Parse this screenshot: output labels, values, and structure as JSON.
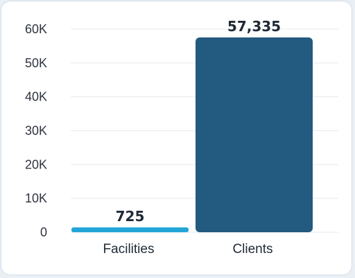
{
  "chart_data": {
    "type": "bar",
    "categories": [
      "Facilities",
      "Clients"
    ],
    "values": [
      725,
      57335
    ],
    "value_labels": [
      "725",
      "57,335"
    ],
    "ylim": [
      0,
      60000
    ],
    "yticks": [
      {
        "value": 0,
        "label": "0"
      },
      {
        "value": 10000,
        "label": "10K"
      },
      {
        "value": 20000,
        "label": "20K"
      },
      {
        "value": 30000,
        "label": "30K"
      },
      {
        "value": 40000,
        "label": "40K"
      },
      {
        "value": 50000,
        "label": "50K"
      },
      {
        "value": 60000,
        "label": "60K"
      }
    ],
    "title": "",
    "xlabel": "",
    "ylabel": "",
    "grid": true,
    "legend": "none",
    "colors": [
      "#22a6d8",
      "#235a80"
    ],
    "grid_color": "#e4e9ef"
  }
}
